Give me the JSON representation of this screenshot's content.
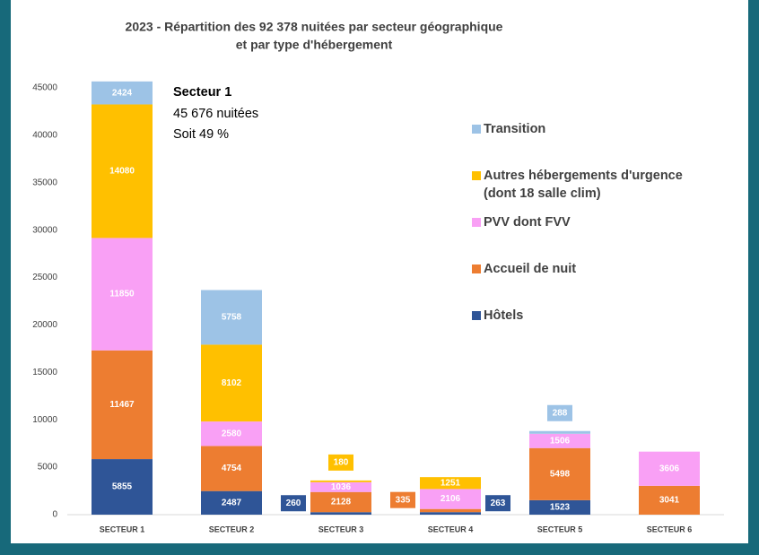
{
  "chart_data": {
    "type": "stacked_bar",
    "title": [
      "2023 - Répartition des 92 378 nuitées par secteur géographique",
      "et par type d'hébergement"
    ],
    "annotation": [
      "Secteur 1",
      "45 676 nuitées",
      "Soit 49 %"
    ],
    "categories": [
      "SECTEUR 1",
      "SECTEUR 2",
      "SECTEUR 3",
      "SECTEUR 4",
      "SECTEUR 5",
      "SECTEUR 6"
    ],
    "series": [
      {
        "name": "Hôtels",
        "color": "#2f5597",
        "values": [
          5855,
          2487,
          260,
          263,
          1523,
          null
        ]
      },
      {
        "name": "Accueil de nuit",
        "color": "#ed7d31",
        "values": [
          11467,
          4754,
          2128,
          335,
          5498,
          3041
        ]
      },
      {
        "name": "PVV dont FVV",
        "color": "#f9a0f5",
        "values": [
          11850,
          2580,
          1036,
          2106,
          1506,
          3606
        ]
      },
      {
        "name": "Autres hébergements d'urgence (dont 18 salle clim)",
        "color": "#ffc000",
        "values": [
          14080,
          8102,
          180,
          1251,
          null,
          null
        ]
      },
      {
        "name": "Transition",
        "color": "#9dc3e6",
        "values": [
          2424,
          5758,
          null,
          null,
          288,
          null
        ]
      }
    ],
    "ylim": [
      0,
      46000
    ],
    "yticks": [
      0,
      5000,
      10000,
      15000,
      20000,
      25000,
      30000,
      35000,
      40000,
      45000
    ],
    "grid": false
  }
}
